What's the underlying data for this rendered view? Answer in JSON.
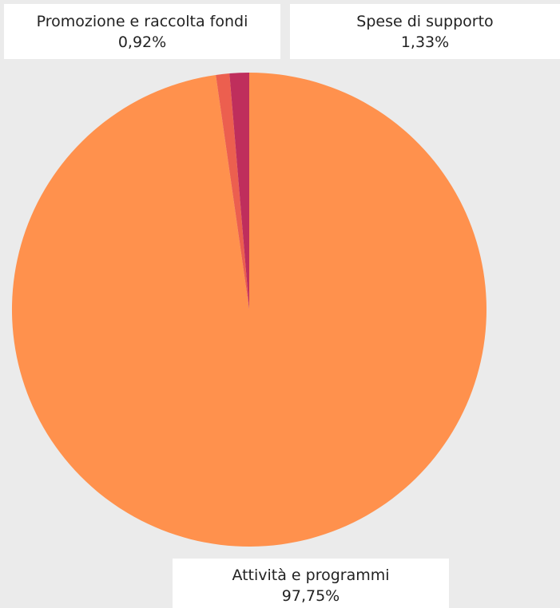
{
  "chart_data": {
    "type": "pie",
    "slices": [
      {
        "label": "Attività e programmi",
        "value_label": "97,75%",
        "value": 97.75,
        "color": "#ff914d"
      },
      {
        "label": "Promozione e raccolta fondi",
        "value_label": "0,92%",
        "value": 0.92,
        "color": "#ec5f4f"
      },
      {
        "label": "Spese di supporto",
        "value_label": "1,33%",
        "value": 1.33,
        "color": "#bf2e5c"
      }
    ]
  }
}
